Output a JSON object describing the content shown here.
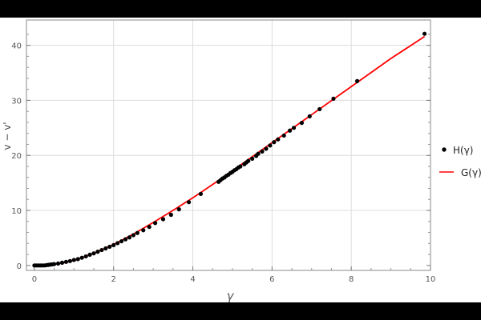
{
  "chart_data": {
    "type": "scatter",
    "title": "",
    "xlabel": "γ",
    "ylabel": "v − v'",
    "xlim": [
      -0.2,
      10
    ],
    "ylim": [
      -0.9,
      44.6
    ],
    "xticks": [
      0,
      2,
      4,
      6,
      8,
      10
    ],
    "yticks": [
      0,
      10,
      20,
      30,
      40
    ],
    "grid": true,
    "legend_placement": "right",
    "series": [
      {
        "name": "H(γ)",
        "kind": "points",
        "color": "#000000",
        "x": [
          0.0,
          0.05,
          0.1,
          0.15,
          0.2,
          0.25,
          0.3,
          0.35,
          0.4,
          0.45,
          0.5,
          0.6,
          0.7,
          0.8,
          0.9,
          1.0,
          1.1,
          1.2,
          1.3,
          1.4,
          1.5,
          1.6,
          1.7,
          1.8,
          1.9,
          2.0,
          2.1,
          2.2,
          2.3,
          2.4,
          2.5,
          2.6,
          2.75,
          2.9,
          3.05,
          3.25,
          3.45,
          3.65,
          3.9,
          4.2,
          4.65,
          4.7,
          4.75,
          4.8,
          4.85,
          4.9,
          4.95,
          5.0,
          5.05,
          5.1,
          5.15,
          5.2,
          5.3,
          5.35,
          5.4,
          5.5,
          5.6,
          5.65,
          5.75,
          5.85,
          5.95,
          6.05,
          6.15,
          6.3,
          6.45,
          6.55,
          6.75,
          6.95,
          7.2,
          7.55,
          8.15,
          9.85
        ],
        "y": [
          0,
          0,
          0,
          0,
          0,
          0,
          0.05,
          0.1,
          0.15,
          0.2,
          0.25,
          0.35,
          0.5,
          0.65,
          0.8,
          1.0,
          1.15,
          1.4,
          1.65,
          1.95,
          2.2,
          2.5,
          2.8,
          3.1,
          3.4,
          3.7,
          4.05,
          4.4,
          4.75,
          5.1,
          5.5,
          5.9,
          6.4,
          7.0,
          7.7,
          8.4,
          9.2,
          10.2,
          11.5,
          13.0,
          15.2,
          15.5,
          15.8,
          16.0,
          16.3,
          16.5,
          16.8,
          17.0,
          17.3,
          17.5,
          17.8,
          18.0,
          18.4,
          18.7,
          19.0,
          19.4,
          19.9,
          20.3,
          20.7,
          21.2,
          21.8,
          22.4,
          22.9,
          23.6,
          24.5,
          25.0,
          25.9,
          27.1,
          28.4,
          30.3,
          33.5,
          42.1
        ]
      },
      {
        "name": "G(γ)",
        "kind": "line",
        "color": "#ff0000",
        "x": [
          0,
          0.25,
          0.5,
          0.75,
          1,
          1.5,
          2,
          2.5,
          3,
          3.5,
          4,
          4.5,
          5,
          6,
          7,
          8,
          9,
          9.85
        ],
        "y": [
          -0.1,
          0.0,
          0.2,
          0.5,
          0.9,
          2.2,
          3.8,
          5.7,
          7.8,
          10.0,
          12.3,
          14.7,
          17.2,
          22.3,
          27.4,
          32.5,
          37.6,
          41.6
        ]
      }
    ]
  }
}
